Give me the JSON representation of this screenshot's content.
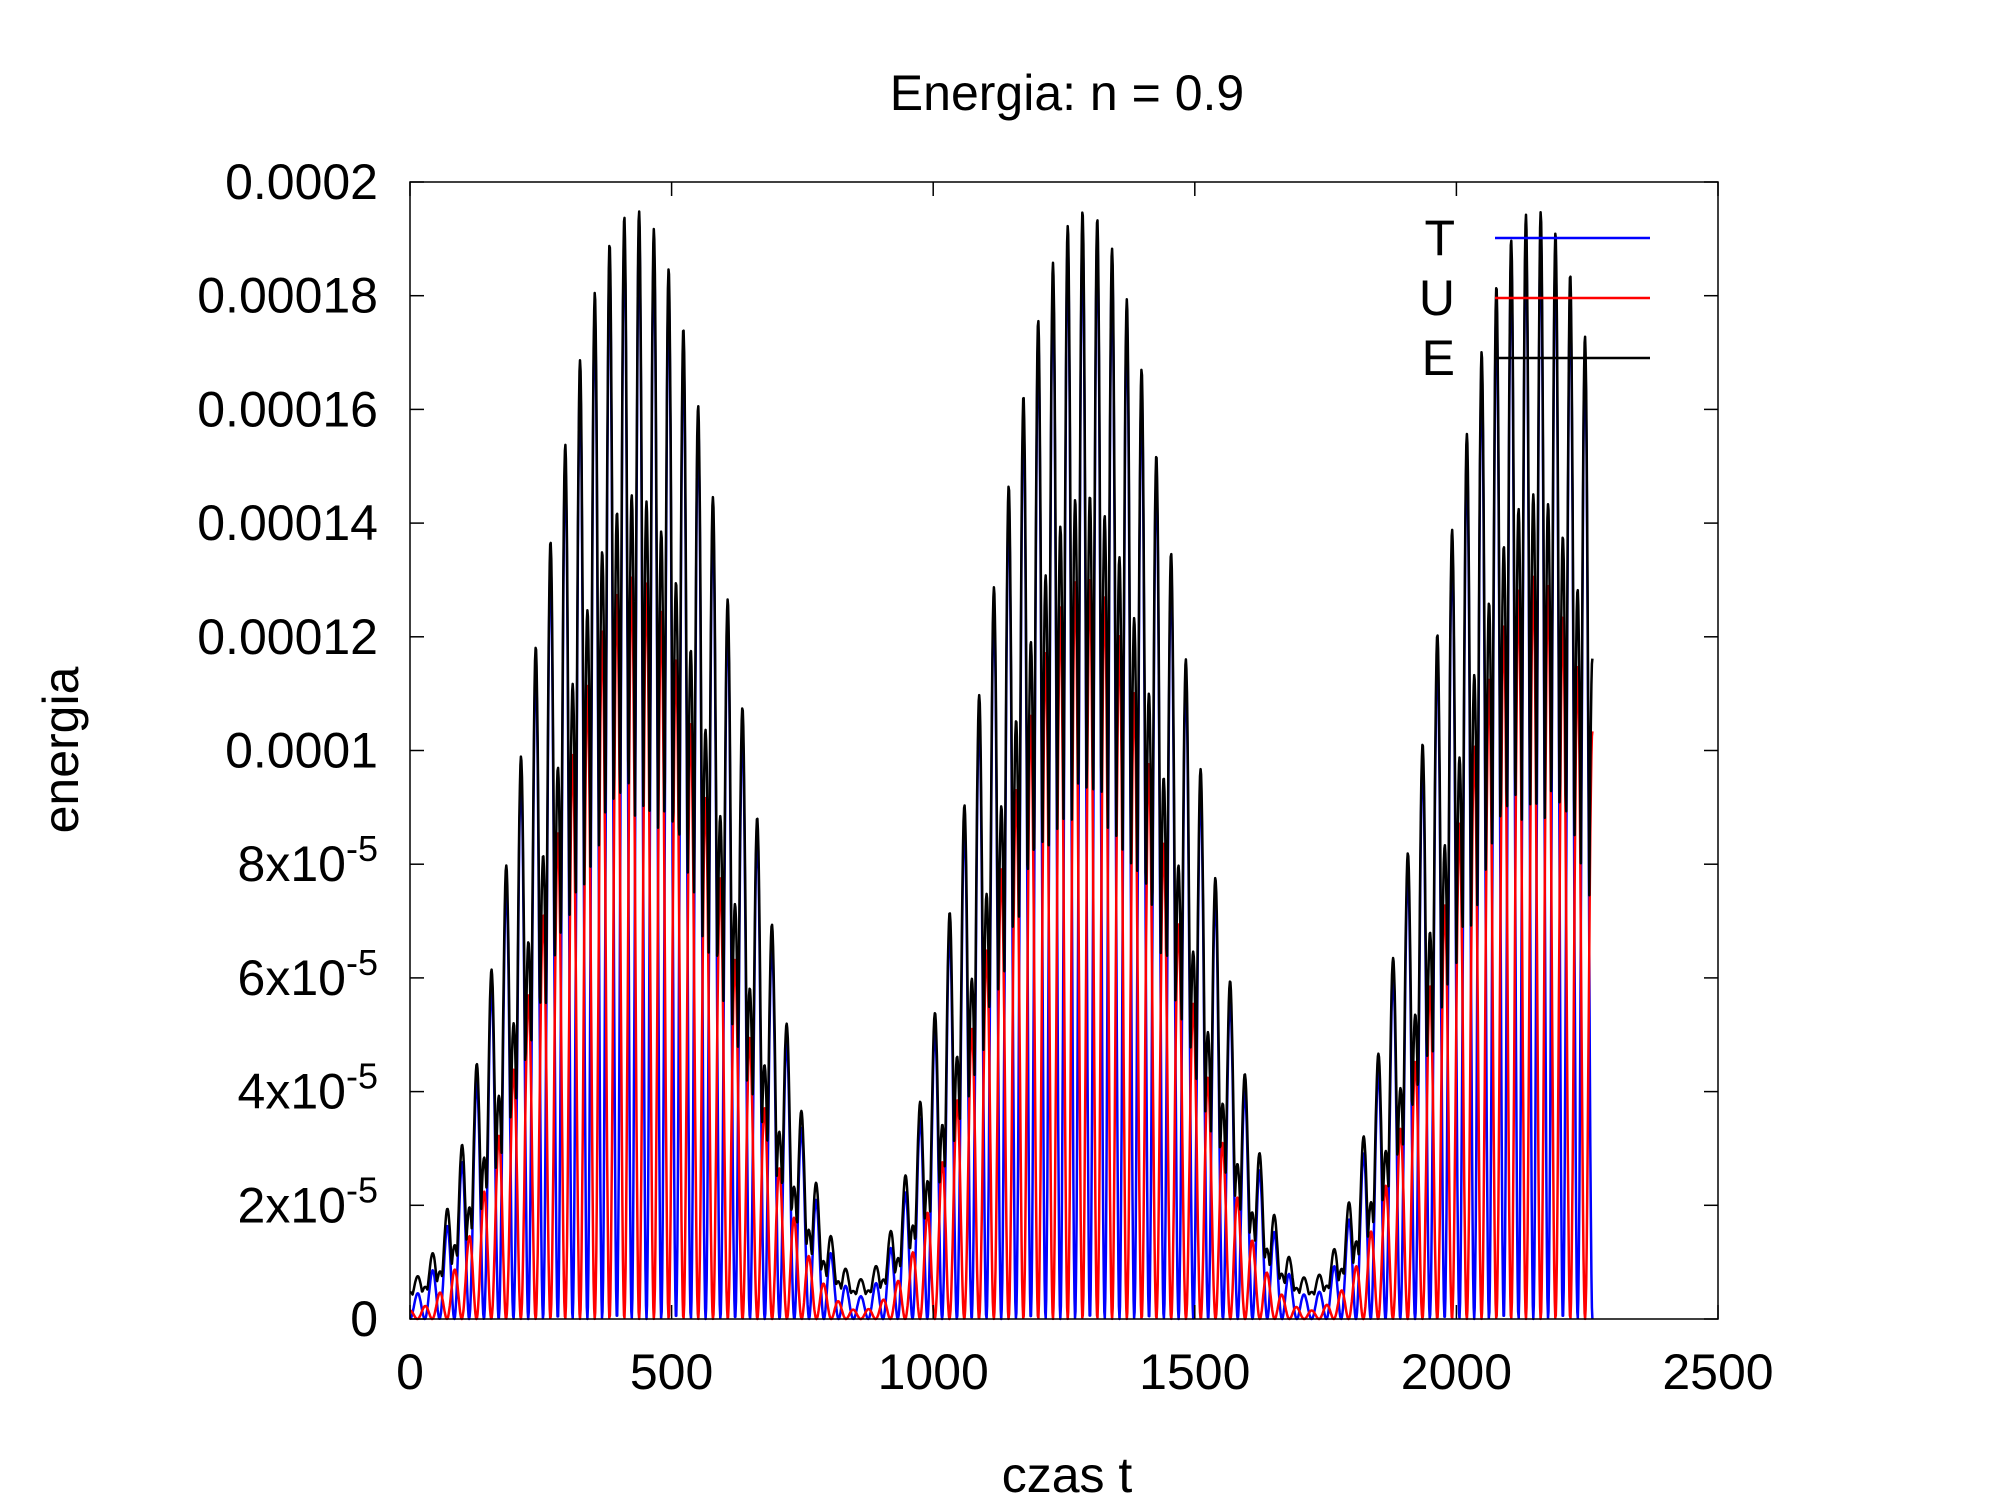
{
  "chart_data": {
    "type": "line",
    "title": "Energia: n = 0.9",
    "xlabel": "czas t",
    "ylabel": "energia",
    "xlim": [
      0,
      2500
    ],
    "ylim": [
      0,
      0.0002
    ],
    "grid": false,
    "legend_position": "top-right",
    "x_ticks": [
      {
        "value": 0,
        "label": "0"
      },
      {
        "value": 500,
        "label": "500"
      },
      {
        "value": 1000,
        "label": "1000"
      },
      {
        "value": 1500,
        "label": "1500"
      },
      {
        "value": 2000,
        "label": "2000"
      },
      {
        "value": 2500,
        "label": "2500"
      }
    ],
    "y_ticks": [
      {
        "value": 0,
        "mantissa": "0",
        "exponent": ""
      },
      {
        "value": 2e-05,
        "mantissa": "2x10",
        "exponent": "-5"
      },
      {
        "value": 4e-05,
        "mantissa": "4x10",
        "exponent": "-5"
      },
      {
        "value": 6e-05,
        "mantissa": "6x10",
        "exponent": "-5"
      },
      {
        "value": 8e-05,
        "mantissa": "8x10",
        "exponent": "-5"
      },
      {
        "value": 0.0001,
        "mantissa": "0.0001",
        "exponent": ""
      },
      {
        "value": 0.00012,
        "mantissa": "0.00012",
        "exponent": ""
      },
      {
        "value": 0.00014,
        "mantissa": "0.00014",
        "exponent": ""
      },
      {
        "value": 0.00016,
        "mantissa": "0.00016",
        "exponent": ""
      },
      {
        "value": 0.00018,
        "mantissa": "0.00018",
        "exponent": ""
      },
      {
        "value": 0.0002,
        "mantissa": "0.0002",
        "exponent": ""
      }
    ],
    "t_range": [
      0,
      2260
    ],
    "oscillation_period": 56.5,
    "envelope_period": 860,
    "series": [
      {
        "name": "T",
        "color": "#0000ff",
        "description_values": {
          "approx_peak": 0.000192,
          "approx_min": 0
        }
      },
      {
        "name": "U",
        "color": "#ff0000",
        "description_values": {
          "approx_peak": 0.00013,
          "approx_min": 0
        }
      },
      {
        "name": "E",
        "color": "#000000",
        "description_values": {
          "approx_peak": 0.000194,
          "approx_min": 0
        }
      }
    ]
  }
}
